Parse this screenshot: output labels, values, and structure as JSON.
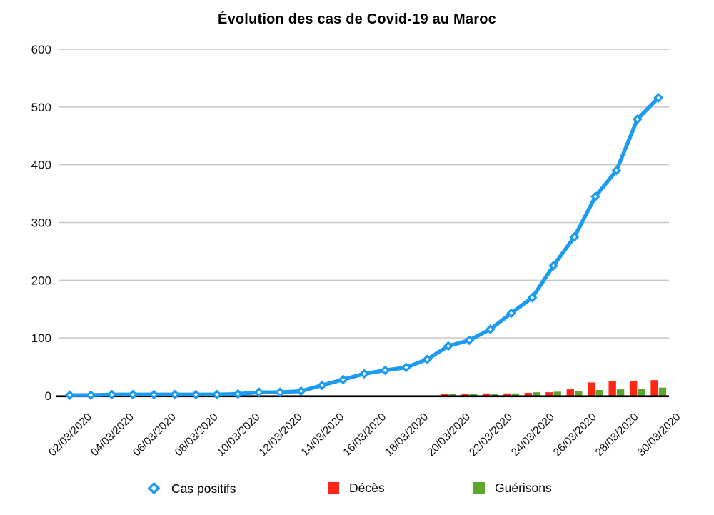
{
  "title": "Évolution des cas de Covid-19 au Maroc",
  "colors": {
    "cases": "#1D9BF0",
    "deaths": "#FF2616",
    "recoveries": "#5FA52F",
    "grid": "#C7C7C7",
    "axis": "#000000",
    "tick_text": "#111111"
  },
  "legend": [
    {
      "label": "Cas positifs",
      "marker": "diamond-outline",
      "color_key": "cases"
    },
    {
      "label": "Décès",
      "marker": "square",
      "color_key": "deaths"
    },
    {
      "label": "Guérisons",
      "marker": "square",
      "color_key": "recoveries"
    }
  ],
  "chart_data": {
    "type": "combo: line + grouped bars",
    "title": "Évolution des cas de Covid-19 au Maroc",
    "categories": [
      "02/03/2020",
      "03/03/2020",
      "04/03/2020",
      "05/03/2020",
      "06/03/2020",
      "07/03/2020",
      "08/03/2020",
      "09/03/2020",
      "10/03/2020",
      "11/03/2020",
      "12/03/2020",
      "13/03/2020",
      "14/03/2020",
      "15/03/2020",
      "16/03/2020",
      "17/03/2020",
      "18/03/2020",
      "19/03/2020",
      "20/03/2020",
      "21/03/2020",
      "22/03/2020",
      "23/03/2020",
      "24/03/2020",
      "25/03/2020",
      "26/03/2020",
      "27/03/2020",
      "28/03/2020",
      "29/03/2020",
      "30/03/2020"
    ],
    "x_tick_step": 2,
    "series": [
      {
        "name": "Cas positifs",
        "type": "line",
        "marker": "diamond",
        "values": [
          1,
          1,
          2,
          2,
          2,
          2,
          2,
          2,
          3,
          6,
          6,
          8,
          18,
          28,
          38,
          44,
          49,
          63,
          86,
          96,
          115,
          143,
          170,
          225,
          275,
          345,
          390,
          479,
          516
        ]
      },
      {
        "name": "Décès",
        "type": "bar",
        "values": [
          0,
          0,
          0,
          0,
          0,
          0,
          0,
          0,
          0,
          0,
          0,
          0,
          0,
          0,
          0,
          0,
          0,
          0,
          3,
          3,
          4,
          4,
          5,
          6,
          11,
          23,
          25,
          26,
          27
        ]
      },
      {
        "name": "Guérisons",
        "type": "bar",
        "values": [
          0,
          0,
          0,
          0,
          0,
          0,
          0,
          0,
          0,
          0,
          0,
          0,
          0,
          0,
          0,
          0,
          0,
          0,
          3,
          3,
          3,
          4,
          6,
          7,
          8,
          10,
          11,
          12,
          14
        ]
      }
    ],
    "xlabel": "",
    "ylabel": "",
    "ylim": [
      0,
      600
    ],
    "yticks": [
      0,
      100,
      200,
      300,
      400,
      500,
      600
    ],
    "grid": "horizontal",
    "legend_position": "bottom"
  }
}
